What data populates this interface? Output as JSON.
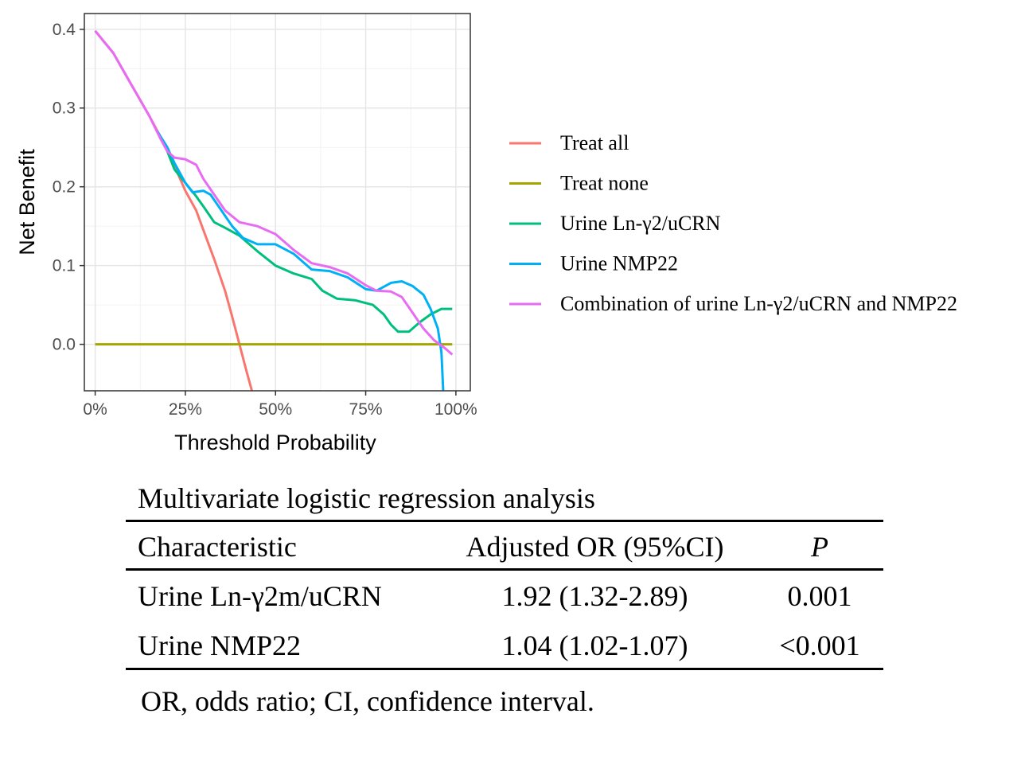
{
  "chart_data": {
    "type": "line",
    "title": "",
    "xlabel": "Threshold Probability",
    "ylabel": "Net Benefit",
    "xlim": [
      -0.03,
      1.04
    ],
    "ylim": [
      -0.059,
      0.42
    ],
    "x_ticks": [
      0,
      0.25,
      0.5,
      0.75,
      1.0
    ],
    "x_tick_labels": [
      "0%",
      "25%",
      "50%",
      "75%",
      "100%"
    ],
    "y_ticks": [
      0.0,
      0.1,
      0.2,
      0.3,
      0.4
    ],
    "y_tick_labels": [
      "0.0",
      "0.1",
      "0.2",
      "0.3",
      "0.4"
    ],
    "grid": true,
    "legend_position": "right",
    "series": [
      {
        "name": "Treat all",
        "color": "#f8766d",
        "points": [
          [
            0,
            0.398
          ],
          [
            0.05,
            0.37
          ],
          [
            0.1,
            0.33
          ],
          [
            0.15,
            0.29
          ],
          [
            0.2,
            0.247
          ],
          [
            0.25,
            0.195
          ],
          [
            0.28,
            0.17
          ],
          [
            0.3,
            0.145
          ],
          [
            0.33,
            0.108
          ],
          [
            0.36,
            0.068
          ],
          [
            0.38,
            0.035
          ],
          [
            0.4,
            0.0
          ],
          [
            0.42,
            -0.035
          ],
          [
            0.435,
            -0.06
          ]
        ]
      },
      {
        "name": "Treat none",
        "color": "#a3a500",
        "points": [
          [
            0,
            0.0
          ],
          [
            0.99,
            0.0
          ]
        ]
      },
      {
        "name": "Urine Ln-γ2/uCRN",
        "color": "#00bf7d",
        "points": [
          [
            0.17,
            0.272
          ],
          [
            0.2,
            0.245
          ],
          [
            0.22,
            0.222
          ],
          [
            0.25,
            0.205
          ],
          [
            0.28,
            0.188
          ],
          [
            0.3,
            0.175
          ],
          [
            0.33,
            0.155
          ],
          [
            0.36,
            0.148
          ],
          [
            0.4,
            0.138
          ],
          [
            0.45,
            0.118
          ],
          [
            0.5,
            0.1
          ],
          [
            0.55,
            0.09
          ],
          [
            0.6,
            0.083
          ],
          [
            0.63,
            0.068
          ],
          [
            0.67,
            0.058
          ],
          [
            0.72,
            0.056
          ],
          [
            0.77,
            0.05
          ],
          [
            0.8,
            0.038
          ],
          [
            0.82,
            0.025
          ],
          [
            0.84,
            0.016
          ],
          [
            0.87,
            0.016
          ],
          [
            0.9,
            0.028
          ],
          [
            0.93,
            0.038
          ],
          [
            0.96,
            0.045
          ],
          [
            0.99,
            0.045
          ]
        ]
      },
      {
        "name": "Urine NMP22",
        "color": "#00b0f6",
        "points": [
          [
            0.17,
            0.272
          ],
          [
            0.2,
            0.25
          ],
          [
            0.22,
            0.23
          ],
          [
            0.25,
            0.205
          ],
          [
            0.27,
            0.193
          ],
          [
            0.3,
            0.195
          ],
          [
            0.32,
            0.19
          ],
          [
            0.35,
            0.17
          ],
          [
            0.38,
            0.15
          ],
          [
            0.41,
            0.135
          ],
          [
            0.45,
            0.127
          ],
          [
            0.5,
            0.127
          ],
          [
            0.55,
            0.115
          ],
          [
            0.6,
            0.095
          ],
          [
            0.65,
            0.093
          ],
          [
            0.7,
            0.085
          ],
          [
            0.75,
            0.07
          ],
          [
            0.78,
            0.068
          ],
          [
            0.82,
            0.078
          ],
          [
            0.85,
            0.08
          ],
          [
            0.88,
            0.074
          ],
          [
            0.91,
            0.063
          ],
          [
            0.93,
            0.045
          ],
          [
            0.95,
            0.02
          ],
          [
            0.96,
            -0.01
          ],
          [
            0.965,
            -0.06
          ]
        ]
      },
      {
        "name": "Combination of urine Ln-γ2/uCRN  and NMP22",
        "color": "#e76bf3",
        "points": [
          [
            0,
            0.398
          ],
          [
            0.05,
            0.37
          ],
          [
            0.1,
            0.33
          ],
          [
            0.15,
            0.29
          ],
          [
            0.18,
            0.262
          ],
          [
            0.2,
            0.245
          ],
          [
            0.22,
            0.237
          ],
          [
            0.25,
            0.235
          ],
          [
            0.28,
            0.228
          ],
          [
            0.3,
            0.21
          ],
          [
            0.33,
            0.19
          ],
          [
            0.36,
            0.17
          ],
          [
            0.4,
            0.155
          ],
          [
            0.45,
            0.15
          ],
          [
            0.5,
            0.14
          ],
          [
            0.55,
            0.12
          ],
          [
            0.6,
            0.103
          ],
          [
            0.65,
            0.098
          ],
          [
            0.7,
            0.09
          ],
          [
            0.75,
            0.075
          ],
          [
            0.78,
            0.068
          ],
          [
            0.82,
            0.067
          ],
          [
            0.85,
            0.06
          ],
          [
            0.88,
            0.04
          ],
          [
            0.91,
            0.02
          ],
          [
            0.94,
            0.005
          ],
          [
            0.97,
            -0.005
          ],
          [
            0.99,
            -0.013
          ]
        ]
      }
    ]
  },
  "table": {
    "title": "Multivariate logistic regression analysis",
    "headers": {
      "characteristic": "Characteristic",
      "or": "Adjusted OR (95%CI)",
      "p": "P"
    },
    "rows": [
      {
        "characteristic": "Urine Ln-γ2m/uCRN",
        "or": "1.92 (1.32-2.89)",
        "p": "0.001"
      },
      {
        "characteristic": "Urine NMP22",
        "or": "1.04 (1.02-1.07)",
        "p": "<0.001"
      }
    ],
    "footnote": "OR, odds ratio; CI, confidence interval."
  }
}
